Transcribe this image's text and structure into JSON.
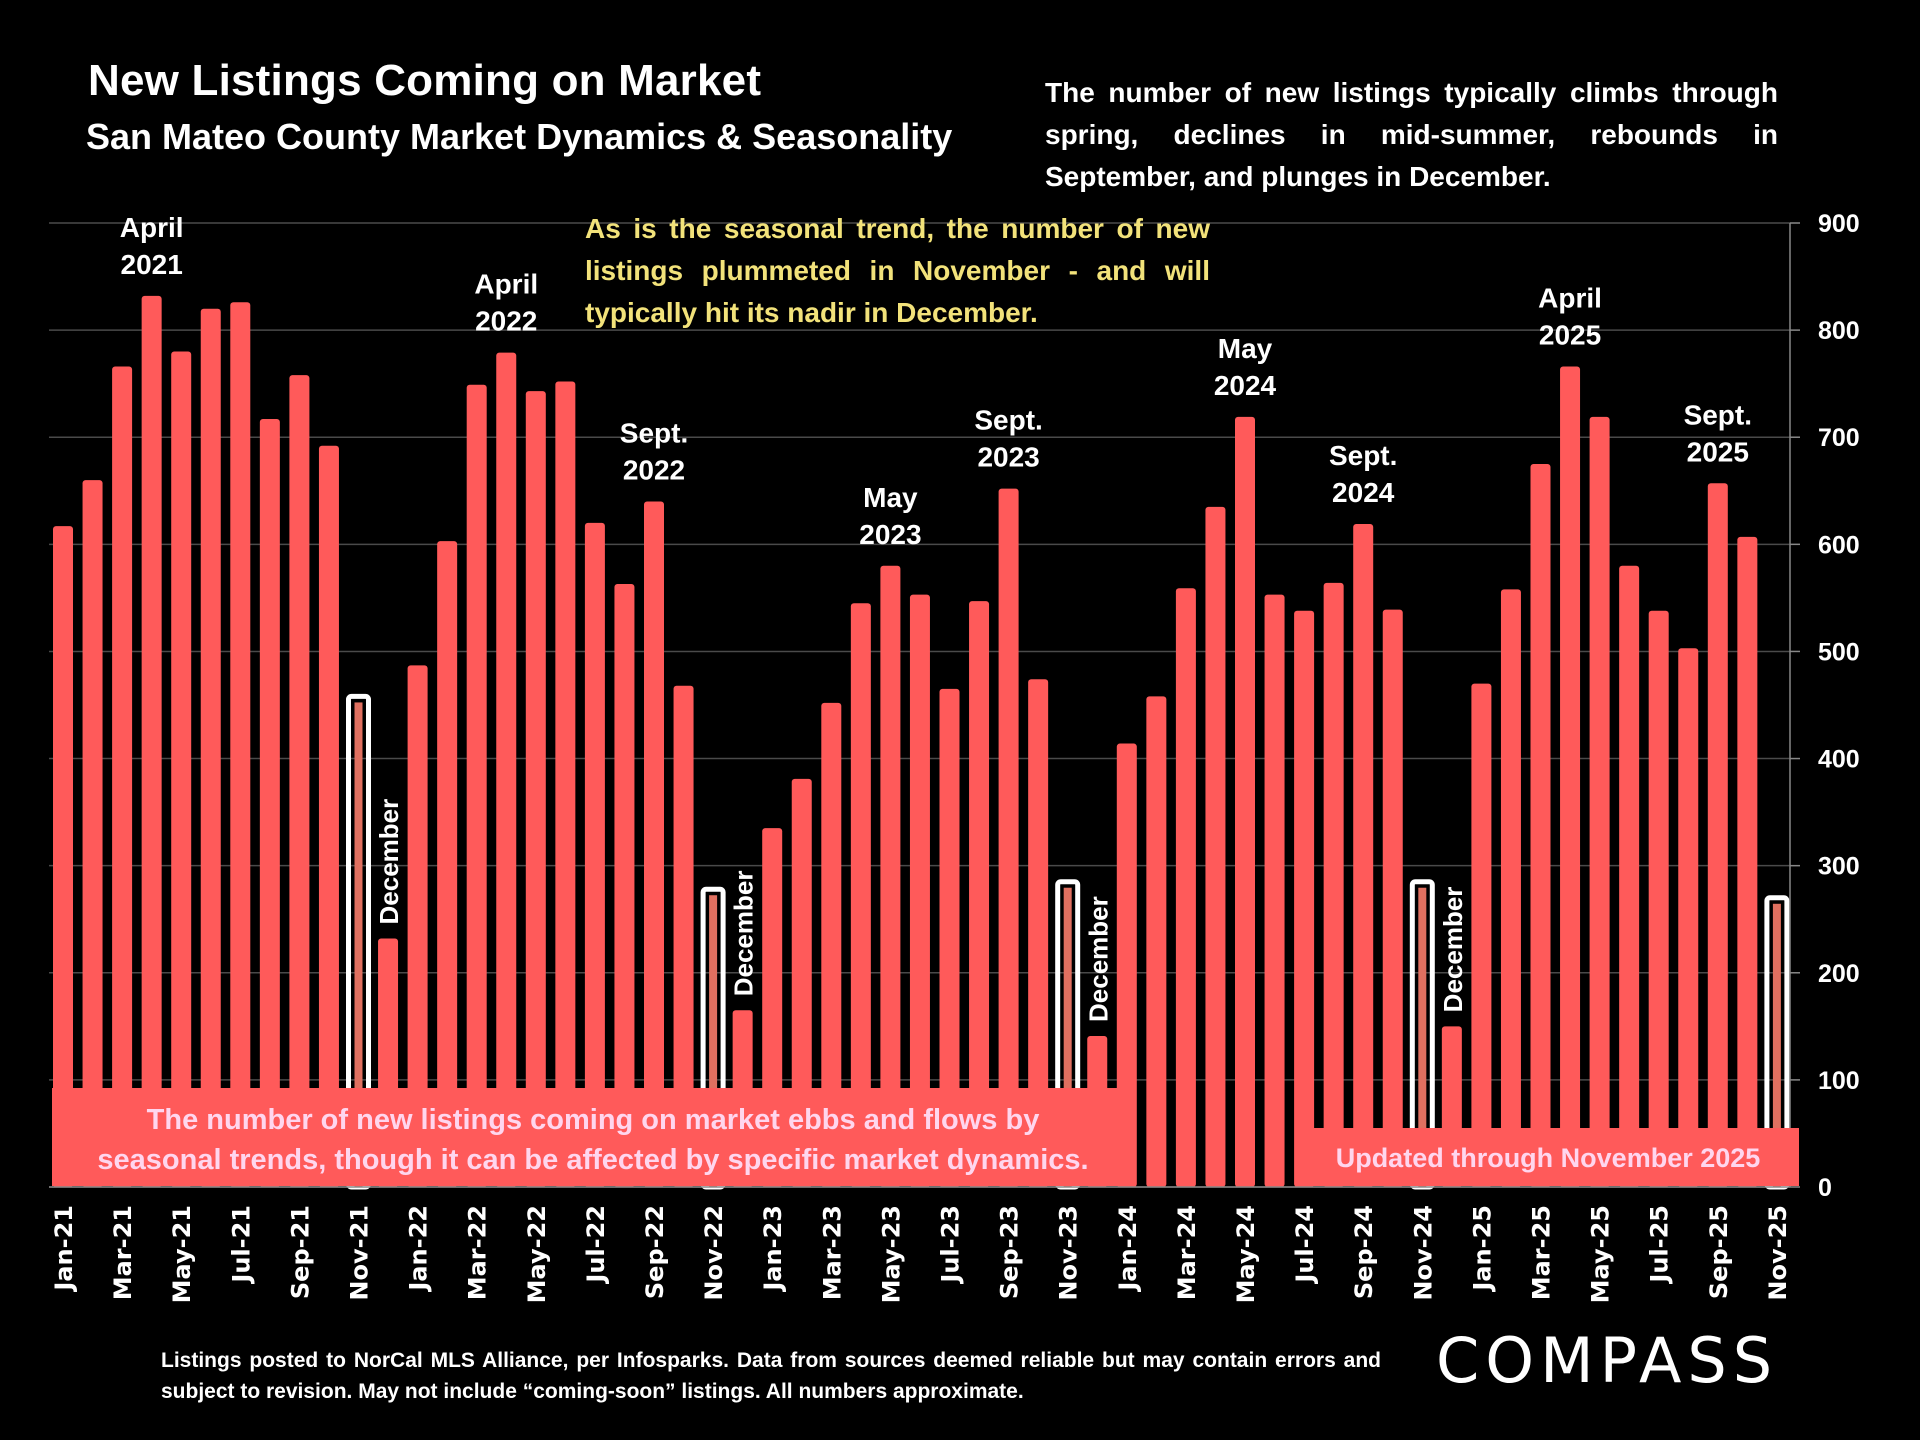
{
  "header": {
    "title": "New Listings Coming on Market",
    "subtitle": "San Mateo County Market Dynamics & Seasonality",
    "description": "The number of new listings typically climbs through spring, declines in mid-summer, rebounds in September, and plunges in December."
  },
  "callout": "As is the seasonal trend, the number of new listings plummeted in November - and will typically hit its nadir in December.",
  "footer": {
    "disclaimer": "Listings posted to NorCal MLS Alliance, per Infosparks. Data from sources deemed reliable but may contain errors and subject to revision. May not include “coming-soon” listings. All numbers approximate.",
    "logo": "COMPASS"
  },
  "colors": {
    "bar": "#ff5a5a",
    "highlight_outline": "#ffffff",
    "callout_text": "#f2e27a",
    "background": "#000000",
    "annotation_box": "#ff5a5a",
    "annotation_text": "#ffd6ee"
  },
  "chart_data": {
    "type": "bar",
    "title": "New Listings Coming on Market",
    "xlabel": "",
    "ylabel": "",
    "ylim": [
      0,
      900
    ],
    "yticks": [
      0,
      100,
      200,
      300,
      400,
      500,
      600,
      700,
      800,
      900
    ],
    "y_axis_side": "right",
    "grid": true,
    "categories": [
      "Jan-21",
      "Feb-21",
      "Mar-21",
      "Apr-21",
      "May-21",
      "Jun-21",
      "Jul-21",
      "Aug-21",
      "Sep-21",
      "Oct-21",
      "Nov-21",
      "Dec-21",
      "Jan-22",
      "Feb-22",
      "Mar-22",
      "Apr-22",
      "May-22",
      "Jun-22",
      "Jul-22",
      "Aug-22",
      "Sep-22",
      "Oct-22",
      "Nov-22",
      "Dec-22",
      "Jan-23",
      "Feb-23",
      "Mar-23",
      "Apr-23",
      "May-23",
      "Jun-23",
      "Jul-23",
      "Aug-23",
      "Sep-23",
      "Oct-23",
      "Nov-23",
      "Dec-23",
      "Jan-24",
      "Feb-24",
      "Mar-24",
      "Apr-24",
      "May-24",
      "Jun-24",
      "Jul-24",
      "Aug-24",
      "Sep-24",
      "Oct-24",
      "Nov-24",
      "Dec-24",
      "Jan-25",
      "Feb-25",
      "Mar-25",
      "Apr-25",
      "May-25",
      "Jun-25",
      "Jul-25",
      "Aug-25",
      "Sep-25",
      "Oct-25",
      "Nov-25"
    ],
    "tick_labels_shown": [
      "Jan-21",
      "Mar-21",
      "May-21",
      "Jul-21",
      "Sep-21",
      "Nov-21",
      "Jan-22",
      "Mar-22",
      "May-22",
      "Jul-22",
      "Sep-22",
      "Nov-22",
      "Jan-23",
      "Mar-23",
      "May-23",
      "Jul-23",
      "Sep-23",
      "Nov-23",
      "Jan-24",
      "Mar-24",
      "May-24",
      "Jul-24",
      "Sep-24",
      "Nov-24",
      "Jan-25",
      "Mar-25",
      "May-25",
      "Jul-25",
      "Sep-25",
      "Nov-25"
    ],
    "values": [
      617,
      660,
      766,
      832,
      780,
      820,
      826,
      717,
      758,
      692,
      458,
      232,
      487,
      603,
      749,
      779,
      743,
      752,
      620,
      563,
      640,
      468,
      278,
      165,
      335,
      381,
      452,
      545,
      580,
      553,
      465,
      547,
      652,
      474,
      285,
      141,
      414,
      458,
      559,
      635,
      719,
      553,
      538,
      564,
      619,
      539,
      285,
      150,
      470,
      558,
      675,
      766,
      719,
      580,
      538,
      503,
      657,
      607,
      270
    ],
    "highlighted": [
      "Nov-21",
      "Nov-22",
      "Nov-23",
      "Nov-24",
      "Nov-25"
    ],
    "peak_labels": [
      {
        "category": "Apr-21",
        "text": [
          "April",
          "2021"
        ]
      },
      {
        "category": "Apr-22",
        "text": [
          "April",
          "2022"
        ]
      },
      {
        "category": "Sep-22",
        "text": [
          "Sept.",
          "2022"
        ]
      },
      {
        "category": "May-23",
        "text": [
          "May",
          "2023"
        ]
      },
      {
        "category": "Sep-23",
        "text": [
          "Sept.",
          "2023"
        ]
      },
      {
        "category": "May-24",
        "text": [
          "May",
          "2024"
        ]
      },
      {
        "category": "Sep-24",
        "text": [
          "Sept.",
          "2024"
        ]
      },
      {
        "category": "Apr-25",
        "text": [
          "April",
          "2025"
        ]
      },
      {
        "category": "Sep-25",
        "text": [
          "Sept.",
          "2025"
        ]
      }
    ],
    "december_labels": [
      {
        "category": "Dec-21",
        "text": "December"
      },
      {
        "category": "Dec-22",
        "text": "December"
      },
      {
        "category": "Dec-23",
        "text": "December"
      },
      {
        "category": "Dec-24",
        "text": "December"
      }
    ],
    "annotations": [
      {
        "id": "ebbs-flows",
        "text": [
          "The number of new listings coming on market ebbs and flows by",
          "seasonal trends, though it can be affected by specific market dynamics."
        ]
      },
      {
        "id": "updated",
        "text": [
          "Updated through November 2025"
        ]
      }
    ]
  }
}
